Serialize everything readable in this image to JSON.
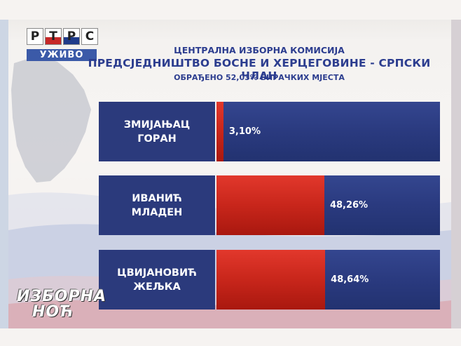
{
  "channel": {
    "logo_letters": [
      "Р",
      "Т",
      "Р",
      "С"
    ],
    "live_label": "УЖИВО",
    "show_name_lines": [
      "ИЗБОРНА",
      "НОЋ"
    ]
  },
  "header": {
    "line1": "ЦЕНТРАЛНА ИЗБОРНА КОМИСИЈА",
    "line2": "ПРЕДСЈЕДНИШТВО БОСНЕ И ХЕРЦЕГОВИНЕ - СРПСКИ ЧЛАН",
    "line3": "ОБРАЂЕНО 52,03% БИРАЧКИХ МЈЕСТА"
  },
  "colors": {
    "bar_fill": "#c8261b",
    "bar_track": "#2a3a7f",
    "name_box": "#2b3a7c",
    "heading": "#2c3d8f"
  },
  "chart_data": {
    "type": "bar",
    "orientation": "horizontal",
    "title": "ПРЕДСЈЕДНИШТВО БОСНЕ И ХЕРЦЕГОВИНЕ - СРПСКИ ЧЛАН",
    "subtitle": "ОБРАЂЕНО 52,03% БИРАЧКИХ МЈЕСТА",
    "xlim": [
      0,
      100
    ],
    "categories": [
      [
        "ЗМИЈАЊАЦ",
        "ГОРАН"
      ],
      [
        "ИВАНИЋ",
        "МЛАДЕН"
      ],
      [
        "ЦВИЈАНОВИЋ",
        "ЖЕЉКА"
      ]
    ],
    "values": [
      3.1,
      48.26,
      48.64
    ],
    "value_labels": [
      "3,10%",
      "48,26%",
      "48,64%"
    ]
  }
}
